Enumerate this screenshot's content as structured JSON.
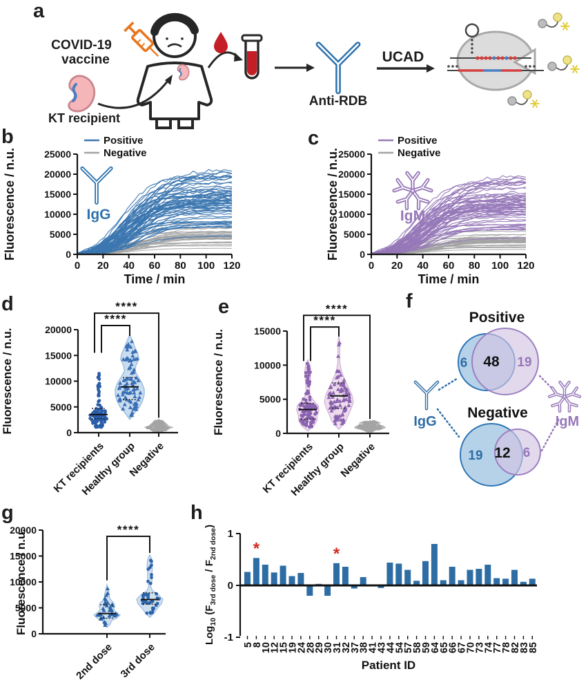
{
  "panel_letters": {
    "a": "a",
    "b": "b",
    "c": "c",
    "d": "d",
    "e": "e",
    "f": "f",
    "g": "g",
    "h": "h"
  },
  "panel_a": {
    "labels": {
      "covid_line1": "COVID-19",
      "covid_line2": "vaccine",
      "kt_recipient": "KT recipient",
      "anti_rdb": "Anti-RDB",
      "ucad": "UCAD"
    },
    "colors": {
      "syringe": "#e8761e",
      "blood": "#c41e26",
      "kidney": "#f4b6b8",
      "antibody_blue": "#2e72ae"
    }
  },
  "chart_data": [
    {
      "panel": "b",
      "type": "line",
      "ylabel": "Fluorescence / n.u.",
      "xlabel": "Time / min",
      "yticks": [
        0,
        5000,
        10000,
        15000,
        20000,
        25000
      ],
      "xticks": [
        0,
        20,
        40,
        60,
        80,
        100,
        120
      ],
      "ylim": [
        0,
        25000
      ],
      "xlim": [
        0,
        120
      ],
      "legend": [
        {
          "label": "Positive",
          "color": "#3b76b0"
        },
        {
          "label": "Negative",
          "color": "#a3a3a3"
        }
      ],
      "icon": "igg-antibody-icon",
      "icon_label": "IgG",
      "icon_color": "#2e72ae",
      "series_envelope": {
        "positive": {
          "count": 62,
          "plateau_min": 2400,
          "plateau_max": 22300
        },
        "negative": {
          "count": 30,
          "plateau_min": 600,
          "plateau_max": 7800
        }
      }
    },
    {
      "panel": "c",
      "type": "line",
      "ylabel": "Fluorescence / n.u.",
      "xlabel": "Time / min",
      "yticks": [
        0,
        5000,
        10000,
        15000,
        20000,
        25000
      ],
      "xticks": [
        0,
        20,
        40,
        60,
        80,
        100,
        120
      ],
      "ylim": [
        0,
        25000
      ],
      "xlim": [
        0,
        120
      ],
      "legend": [
        {
          "label": "Positive",
          "color": "#9678b8"
        },
        {
          "label": "Negative",
          "color": "#a3a3a3"
        }
      ],
      "icon": "igm-antibody-icon",
      "icon_label": "IgM",
      "icon_color": "#9678b8",
      "series_envelope": {
        "positive": {
          "count": 60,
          "plateau_min": 2000,
          "plateau_max": 20700
        },
        "negative": {
          "count": 30,
          "plateau_min": 500,
          "plateau_max": 5800
        }
      }
    },
    {
      "panel": "d",
      "type": "violin-scatter",
      "ylabel": "Fluorescence / n.u.",
      "yticks": [
        0,
        5000,
        10000,
        15000,
        20000
      ],
      "ylim": [
        0,
        20000
      ],
      "groups": [
        {
          "label": "KT recipients",
          "n": 95,
          "min": 900,
          "max": 12200,
          "median": 3500,
          "q1": 2700,
          "q3": 4700,
          "marker": "circle",
          "color": "#2a5da8",
          "violin": false,
          "show_stats": true
        },
        {
          "label": "Healthy group",
          "n": 88,
          "min": 3300,
          "max": 18300,
          "median": 8900,
          "q1": 6400,
          "q3": 10700,
          "marker": "triangle",
          "color": "#3a6fb5",
          "violin": true,
          "violin_fill": "#c9ddf0",
          "violin_stroke": "#8fb5dc",
          "show_stats": true
        },
        {
          "label": "Negative",
          "n": 85,
          "min": 300,
          "max": 2400,
          "median": 1100,
          "q1": 800,
          "q3": 1500,
          "marker": "circle",
          "color": "#a4a4a4",
          "violin": true,
          "violin_fill": "#bcbcbc",
          "violin_stroke": "#b2b2b2",
          "show_stats": false
        }
      ],
      "significance": [
        {
          "between": [
            0,
            1
          ],
          "label": "****",
          "top": 20800,
          "drop": [
            15500,
            18800
          ],
          "dx": [
            4,
            0
          ]
        },
        {
          "between": [
            0,
            2
          ],
          "label": "****",
          "top": 23200,
          "drop": [
            15500,
            2900
          ],
          "dx": [
            -6,
            0
          ]
        }
      ]
    },
    {
      "panel": "e",
      "type": "violin-scatter",
      "ylabel": "Fluorescence / n.u.",
      "yticks": [
        0,
        5000,
        10000,
        15000
      ],
      "ylim": [
        0,
        15000
      ],
      "groups": [
        {
          "label": "KT recipients",
          "n": 100,
          "min": 800,
          "max": 10300,
          "median": 3500,
          "q1": 2100,
          "q3": 4400,
          "marker": "circle",
          "color": "#8a63ae",
          "violin": true,
          "violin_fill": "#eedcee",
          "violin_stroke": "#d2b0d3",
          "show_stats": true
        },
        {
          "label": "Healthy group",
          "n": 85,
          "min": 1200,
          "max": 13700,
          "median": 5500,
          "q1": 3700,
          "q3": 7400,
          "marker": "triangle",
          "color": "#8a63ae",
          "violin": true,
          "violin_fill": "#eedcee",
          "violin_stroke": "#d2b0d3",
          "show_stats": true
        },
        {
          "label": "Negative",
          "n": 85,
          "min": 300,
          "max": 1700,
          "median": 900,
          "q1": 700,
          "q3": 1200,
          "marker": "circle",
          "color": "#a4a4a4",
          "violin": true,
          "violin_fill": "#bcbcbc",
          "violin_stroke": "#b2b2b2",
          "show_stats": false
        }
      ],
      "significance": [
        {
          "between": [
            0,
            1
          ],
          "label": "****",
          "top": 15600,
          "drop": [
            10600,
            14200
          ],
          "dx": [
            4,
            0
          ]
        },
        {
          "between": [
            0,
            2
          ],
          "label": "****",
          "top": 17300,
          "drop": [
            10600,
            2100
          ],
          "dx": [
            -6,
            0
          ]
        }
      ]
    },
    {
      "panel": "f",
      "type": "venn",
      "diagrams": [
        {
          "title": "Positive",
          "left_only": "6",
          "overlap": "48",
          "right_only": "19"
        },
        {
          "title": "Negative",
          "left_only": "19",
          "overlap": "12",
          "right_only": "6"
        }
      ],
      "left_label": "IgG",
      "right_label": "IgM",
      "colors": {
        "igg": "#2e6da8",
        "igm": "#9678b8",
        "left_fill": "#aecde6",
        "right_fill": "#d4c5e3",
        "left_stroke": "#2e75b5",
        "right_stroke": "#9b7fc0"
      }
    },
    {
      "panel": "g",
      "type": "violin-scatter",
      "ylabel": "Fluorescence / n.u.",
      "yticks": [
        0,
        5000,
        10000,
        15000,
        20000
      ],
      "ylim": [
        0,
        20000
      ],
      "groups": [
        {
          "label": "2nd dose",
          "n": 38,
          "min": 1600,
          "max": 9100,
          "median": 3900,
          "q1": 3000,
          "q3": 5600,
          "marker": "triangle",
          "color": "#2d64a9",
          "violin": true,
          "violin_fill": "#cfe0f0",
          "violin_stroke": "#98bbdc",
          "show_stats": true
        },
        {
          "label": "3rd dose",
          "n": 38,
          "min": 3700,
          "max": 14700,
          "median": 6600,
          "q1": 5700,
          "q3": 7900,
          "marker": "circle",
          "color": "#2d64a9",
          "violin": true,
          "violin_fill": "#cfe0f0",
          "violin_stroke": "#98bbdc",
          "show_stats": true
        }
      ],
      "significance": [
        {
          "between": [
            0,
            1
          ],
          "label": "****",
          "top": 18800,
          "drop": [
            10300,
            15600
          ],
          "dx": [
            0,
            0
          ]
        }
      ]
    },
    {
      "panel": "h",
      "type": "bar",
      "ylabel_parts": [
        {
          "t": "Log",
          "sub": false
        },
        {
          "t": "10",
          "sub": true
        },
        {
          "t": " (F",
          "sub": false
        },
        {
          "t": "3rd dose",
          "sub": true
        },
        {
          "t": " / F",
          "sub": false
        },
        {
          "t": "2nd dose",
          "sub": true
        },
        {
          "t": ")",
          "sub": false
        }
      ],
      "xlabel": "Patient ID",
      "yticks": [
        -1,
        0,
        1
      ],
      "ylim": [
        -1,
        1
      ],
      "categories": [
        5,
        8,
        10,
        12,
        15,
        19,
        24,
        28,
        29,
        30,
        31,
        32,
        37,
        38,
        41,
        43,
        44,
        54,
        57,
        58,
        59,
        64,
        65,
        66,
        67,
        70,
        73,
        74,
        77,
        78,
        82,
        83,
        85
      ],
      "values": [
        0.26,
        0.53,
        0.4,
        0.25,
        0.38,
        0.18,
        0.24,
        -0.2,
        0.03,
        -0.2,
        0.43,
        0.36,
        -0.06,
        0.16,
        0.0,
        -0.05,
        0.44,
        0.42,
        0.3,
        0.09,
        0.47,
        0.8,
        0.1,
        0.36,
        0.1,
        0.3,
        0.32,
        0.4,
        0.14,
        0.13,
        0.3,
        0.07,
        0.13
      ],
      "flagged": [
        8,
        31
      ],
      "flag_symbol": "*",
      "flag_color": "#d6281e",
      "bar_color": "#2e6da4"
    }
  ]
}
